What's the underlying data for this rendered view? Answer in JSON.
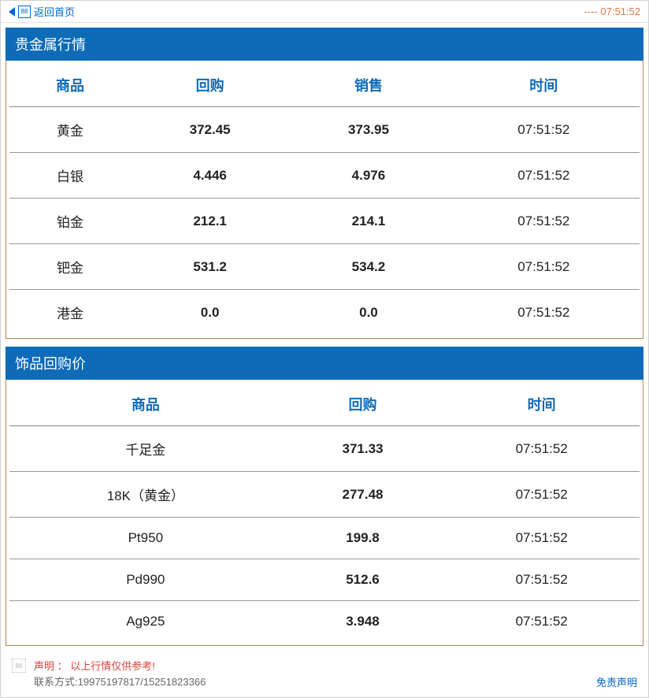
{
  "topbar": {
    "back_label": "返回首页",
    "clock_prefix": "----",
    "clock_time": "07:51:52"
  },
  "colors": {
    "header_bg": "#0d6bb8",
    "header_text": "#ffffff",
    "link": "#0066cc",
    "border_gold": "#b8864b",
    "clock": "#d97a4a",
    "red": "#d9433a"
  },
  "section1": {
    "title": "贵金属行情",
    "columns": [
      "商品",
      "回购",
      "销售",
      "时间"
    ],
    "rows": [
      [
        "黄金",
        "372.45",
        "373.95",
        "07:51:52"
      ],
      [
        "白银",
        "4.446",
        "4.976",
        "07:51:52"
      ],
      [
        "铂金",
        "212.1",
        "214.1",
        "07:51:52"
      ],
      [
        "钯金",
        "531.2",
        "534.2",
        "07:51:52"
      ],
      [
        "港金",
        "0.0",
        "0.0",
        "07:51:52"
      ]
    ]
  },
  "section2": {
    "title": "饰品回购价",
    "columns": [
      "商品",
      "回购",
      "时间"
    ],
    "rows": [
      [
        "千足金",
        "371.33",
        "07:51:52"
      ],
      [
        "18K（黄金）",
        "277.48",
        "07:51:52"
      ],
      [
        "Pt950",
        "199.8",
        "07:51:52"
      ],
      [
        "Pd990",
        "512.6",
        "07:51:52"
      ],
      [
        "Ag925",
        "3.948",
        "07:51:52"
      ]
    ]
  },
  "footer": {
    "disclaim_label": "声明 ：",
    "disclaim_text": "以上行情仅供参考!",
    "contact_label": "联系方式:",
    "contact_value": "19975197817/15251823366",
    "disclaimer_link": "免责声明"
  }
}
